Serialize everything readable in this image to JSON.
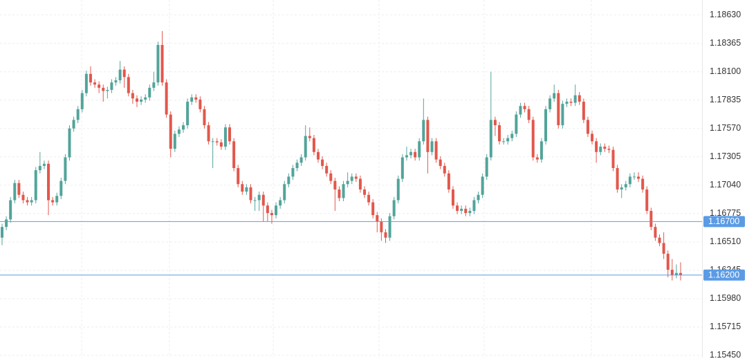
{
  "chart_data": {
    "type": "candlestick",
    "up_color": "#52a49a",
    "down_color": "#e2574c",
    "grid": true,
    "ylim": [
      1.1543,
      1.1877
    ],
    "yticks": [
      {
        "value": 1.1863,
        "label": "1.18630"
      },
      {
        "value": 1.18365,
        "label": "1.18365"
      },
      {
        "value": 1.181,
        "label": "1.18100"
      },
      {
        "value": 1.17835,
        "label": "1.17835"
      },
      {
        "value": 1.1757,
        "label": "1.17570"
      },
      {
        "value": 1.17305,
        "label": "1.17305"
      },
      {
        "value": 1.1704,
        "label": "1.17040"
      },
      {
        "value": 1.16775,
        "label": "1.16775"
      },
      {
        "value": 1.1651,
        "label": "1.16510"
      },
      {
        "value": 1.16245,
        "label": "1.16245"
      },
      {
        "value": 1.1598,
        "label": "1.15980"
      },
      {
        "value": 1.15715,
        "label": "1.15715"
      },
      {
        "value": 1.1545,
        "label": "1.15450"
      }
    ],
    "hlines": [
      {
        "value": 1.167,
        "label": "1.16700",
        "color": "#5b9be6"
      },
      {
        "value": 1.162,
        "label": "1.16200",
        "color": "#5b9be6"
      }
    ],
    "open": [
      1.1655,
      1.1665,
      1.1672,
      1.169,
      1.1706,
      1.1695,
      1.169,
      1.1688,
      1.169,
      1.1718,
      1.1722,
      1.1724,
      1.169,
      1.1688,
      1.1694,
      1.1708,
      1.173,
      1.1757,
      1.1765,
      1.1775,
      1.179,
      1.1808,
      1.18,
      1.1798,
      1.1795,
      1.1792,
      1.1793,
      1.18,
      1.1802,
      1.1812,
      1.1805,
      1.179,
      1.1785,
      1.1782,
      1.1784,
      1.1786,
      1.1795,
      1.18,
      1.1835,
      1.18,
      1.177,
      1.1738,
      1.1752,
      1.1756,
      1.176,
      1.1782,
      1.1786,
      1.1784,
      1.1775,
      1.176,
      1.1745,
      1.1745,
      1.1744,
      1.174,
      1.1758,
      1.1745,
      1.172,
      1.1705,
      1.1698,
      1.1702,
      1.169,
      1.169,
      1.1695,
      1.1685,
      1.1678,
      1.1676,
      1.1685,
      1.169,
      1.1705,
      1.1712,
      1.172,
      1.1725,
      1.173,
      1.175,
      1.1748,
      1.1735,
      1.1728,
      1.1722,
      1.1715,
      1.1708,
      1.17,
      1.1692,
      1.1705,
      1.1708,
      1.1712,
      1.171,
      1.17,
      1.1695,
      1.1688,
      1.1676,
      1.167,
      1.166,
      1.1655,
      1.1675,
      1.169,
      1.171,
      1.173,
      1.1732,
      1.1735,
      1.173,
      1.1745,
      1.1765,
      1.1735,
      1.1745,
      1.1728,
      1.1722,
      1.1715,
      1.17,
      1.1685,
      1.168,
      1.1682,
      1.1678,
      1.168,
      1.169,
      1.1695,
      1.1712,
      1.173,
      1.1765,
      1.176,
      1.1745,
      1.1745,
      1.1748,
      1.1752,
      1.177,
      1.1778,
      1.1775,
      1.1765,
      1.173,
      1.1728,
      1.1745,
      1.1775,
      1.1785,
      1.179,
      1.176,
      1.178,
      1.1782,
      1.1781,
      1.1788,
      1.1782,
      1.1765,
      1.1752,
      1.1745,
      1.1735,
      1.174,
      1.1738,
      1.1737,
      1.172,
      1.17,
      1.1702,
      1.1705,
      1.1712,
      1.1712,
      1.171,
      1.17,
      1.168,
      1.1665,
      1.1655,
      1.165,
      1.164,
      1.1625,
      1.162,
      1.1622
    ],
    "high": [
      1.1668,
      1.1675,
      1.1693,
      1.1709,
      1.1709,
      1.1698,
      1.1693,
      1.1693,
      1.1721,
      1.1735,
      1.1727,
      1.1727,
      1.1693,
      1.1697,
      1.1711,
      1.1733,
      1.176,
      1.1768,
      1.1778,
      1.1793,
      1.1811,
      1.1815,
      1.1803,
      1.1801,
      1.1798,
      1.1796,
      1.1803,
      1.1805,
      1.182,
      1.1815,
      1.1808,
      1.1793,
      1.1788,
      1.1787,
      1.1789,
      1.1798,
      1.181,
      1.1838,
      1.1848,
      1.1803,
      1.1773,
      1.1755,
      1.1759,
      1.1763,
      1.1785,
      1.1789,
      1.1789,
      1.1787,
      1.1778,
      1.1763,
      1.1748,
      1.1748,
      1.1747,
      1.1761,
      1.1761,
      1.1748,
      1.1723,
      1.1708,
      1.1705,
      1.1705,
      1.1693,
      1.1698,
      1.1698,
      1.1688,
      1.1681,
      1.1688,
      1.1693,
      1.1708,
      1.1715,
      1.1723,
      1.1728,
      1.1733,
      1.176,
      1.1758,
      1.1751,
      1.1738,
      1.1731,
      1.1725,
      1.1718,
      1.1711,
      1.1703,
      1.1708,
      1.1716,
      1.1715,
      1.1715,
      1.1713,
      1.1703,
      1.1698,
      1.1691,
      1.1679,
      1.1673,
      1.1663,
      1.1678,
      1.1693,
      1.1713,
      1.1733,
      1.174,
      1.1738,
      1.1738,
      1.1748,
      1.1785,
      1.1768,
      1.1748,
      1.1748,
      1.1731,
      1.1725,
      1.1718,
      1.1703,
      1.1688,
      1.1685,
      1.1685,
      1.1683,
      1.1693,
      1.1698,
      1.1715,
      1.1733,
      1.181,
      1.1768,
      1.1763,
      1.1748,
      1.1751,
      1.1755,
      1.1773,
      1.1781,
      1.1781,
      1.1778,
      1.1768,
      1.1733,
      1.1748,
      1.1778,
      1.1788,
      1.1798,
      1.1793,
      1.1783,
      1.1785,
      1.1785,
      1.1798,
      1.1791,
      1.1785,
      1.1768,
      1.1755,
      1.1748,
      1.1743,
      1.1743,
      1.1741,
      1.174,
      1.1723,
      1.1705,
      1.1708,
      1.1715,
      1.1716,
      1.1716,
      1.1713,
      1.1703,
      1.1683,
      1.1668,
      1.1658,
      1.166,
      1.1643,
      1.1635,
      1.163,
      1.1632
    ],
    "low": [
      1.1648,
      1.1662,
      1.1669,
      1.1687,
      1.1692,
      1.1687,
      1.1685,
      1.1685,
      1.1687,
      1.1715,
      1.1719,
      1.1676,
      1.1685,
      1.1685,
      1.1691,
      1.1705,
      1.1727,
      1.1754,
      1.1762,
      1.1772,
      1.1787,
      1.1797,
      1.1795,
      1.179,
      1.1782,
      1.1785,
      1.179,
      1.1797,
      1.1799,
      1.1795,
      1.1787,
      1.178,
      1.1777,
      1.1779,
      1.1781,
      1.1783,
      1.1792,
      1.1797,
      1.1797,
      1.1767,
      1.173,
      1.1735,
      1.1749,
      1.1753,
      1.1757,
      1.1779,
      1.1781,
      1.1772,
      1.1757,
      1.1742,
      1.172,
      1.1741,
      1.1737,
      1.1737,
      1.1742,
      1.1717,
      1.1702,
      1.1695,
      1.1695,
      1.1687,
      1.168,
      1.168,
      1.167,
      1.167,
      1.1668,
      1.1673,
      1.1682,
      1.1687,
      1.1702,
      1.1709,
      1.1717,
      1.1722,
      1.1727,
      1.1745,
      1.1732,
      1.1725,
      1.1719,
      1.1712,
      1.1705,
      1.168,
      1.1689,
      1.1689,
      1.1702,
      1.1705,
      1.1707,
      1.1697,
      1.1692,
      1.1685,
      1.1673,
      1.166,
      1.1652,
      1.165,
      1.1652,
      1.1672,
      1.1687,
      1.1707,
      1.1727,
      1.1729,
      1.1727,
      1.1727,
      1.1742,
      1.1715,
      1.1732,
      1.1725,
      1.1719,
      1.1712,
      1.1697,
      1.1682,
      1.1677,
      1.1677,
      1.1675,
      1.1675,
      1.1677,
      1.1687,
      1.1692,
      1.1709,
      1.1727,
      1.175,
      1.1742,
      1.1742,
      1.1742,
      1.1745,
      1.1749,
      1.1767,
      1.1772,
      1.1762,
      1.1727,
      1.1725,
      1.1725,
      1.1742,
      1.1772,
      1.1782,
      1.1757,
      1.1757,
      1.1777,
      1.1778,
      1.1778,
      1.1779,
      1.1762,
      1.1749,
      1.1742,
      1.1725,
      1.1732,
      1.1735,
      1.1734,
      1.1717,
      1.1697,
      1.1692,
      1.1699,
      1.1702,
      1.1709,
      1.1707,
      1.1697,
      1.1677,
      1.1662,
      1.1652,
      1.1647,
      1.1635,
      1.1618,
      1.1615,
      1.1617,
      1.1615
    ],
    "close": [
      1.1665,
      1.1672,
      1.169,
      1.1706,
      1.1695,
      1.169,
      1.1688,
      1.169,
      1.1718,
      1.1722,
      1.1724,
      1.169,
      1.1688,
      1.1694,
      1.1708,
      1.173,
      1.1757,
      1.1765,
      1.1775,
      1.179,
      1.1808,
      1.18,
      1.1798,
      1.1795,
      1.1792,
      1.1793,
      1.18,
      1.1802,
      1.1812,
      1.1805,
      1.179,
      1.1785,
      1.1782,
      1.1784,
      1.1786,
      1.1795,
      1.18,
      1.1835,
      1.18,
      1.177,
      1.1738,
      1.1752,
      1.1756,
      1.176,
      1.1782,
      1.1786,
      1.1784,
      1.1775,
      1.176,
      1.1745,
      1.1745,
      1.1744,
      1.174,
      1.1758,
      1.1745,
      1.172,
      1.1705,
      1.1698,
      1.1702,
      1.169,
      1.169,
      1.1695,
      1.1685,
      1.1678,
      1.1676,
      1.1685,
      1.169,
      1.1705,
      1.1712,
      1.172,
      1.1725,
      1.173,
      1.175,
      1.1748,
      1.1735,
      1.1728,
      1.1722,
      1.1715,
      1.1708,
      1.17,
      1.1692,
      1.1705,
      1.1708,
      1.1712,
      1.171,
      1.17,
      1.1695,
      1.1688,
      1.1676,
      1.167,
      1.166,
      1.1655,
      1.1675,
      1.169,
      1.171,
      1.173,
      1.1732,
      1.1735,
      1.173,
      1.1745,
      1.1765,
      1.1735,
      1.1745,
      1.1728,
      1.1722,
      1.1715,
      1.17,
      1.1685,
      1.168,
      1.1682,
      1.1678,
      1.168,
      1.169,
      1.1695,
      1.1712,
      1.173,
      1.1765,
      1.176,
      1.1745,
      1.1745,
      1.1748,
      1.1752,
      1.177,
      1.1778,
      1.1775,
      1.1765,
      1.173,
      1.1728,
      1.1745,
      1.1775,
      1.1785,
      1.179,
      1.176,
      1.178,
      1.1782,
      1.1781,
      1.1788,
      1.1782,
      1.1765,
      1.1752,
      1.1745,
      1.1735,
      1.174,
      1.1738,
      1.1737,
      1.172,
      1.17,
      1.1702,
      1.1705,
      1.1712,
      1.1712,
      1.171,
      1.17,
      1.168,
      1.1665,
      1.1655,
      1.165,
      1.164,
      1.1625,
      1.162,
      1.1622,
      1.162
    ]
  }
}
